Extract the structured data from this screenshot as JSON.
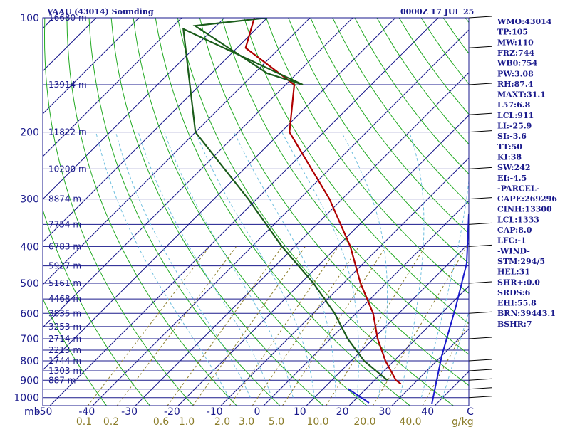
{
  "header": {
    "station": "VAAU (43014) Sounding",
    "time": "0000Z 17 JUL 25"
  },
  "chart_data": {
    "type": "line",
    "pressure_levels": [
      100,
      200,
      300,
      400,
      500,
      600,
      700,
      800,
      900,
      1000
    ],
    "pressure_tick_labels": [
      "100",
      "200",
      "300",
      "400",
      "500",
      "600",
      "700",
      "800",
      "900",
      "1000"
    ],
    "temperature_ticks": [
      -50,
      -40,
      -30,
      -20,
      -10,
      0,
      10,
      20,
      30,
      40
    ],
    "temperature_tick_labels": [
      "-50",
      "-40",
      "-30",
      "-20",
      "-10",
      "0",
      "10",
      "20",
      "30",
      "40"
    ],
    "xlabel": "C",
    "ylabel": "mb",
    "mixing_ratio_ticks": [
      0.1,
      0.2,
      0.6,
      1.0,
      2.0,
      3.0,
      5.0,
      10.0,
      20.0,
      40.0
    ],
    "mixing_ratio_tick_labels": [
      "0.1",
      "0.2",
      "0.6",
      "1.0",
      "2.0",
      "3.0",
      "5.0",
      "10.0",
      "20.0",
      "40.0"
    ],
    "mixing_ratio_unit": "g/kg",
    "height_levels": [
      {
        "pressure": 100,
        "label": "16680 m"
      },
      {
        "pressure": 150,
        "label": "13914 m"
      },
      {
        "pressure": 200,
        "label": "11822 m"
      },
      {
        "pressure": 250,
        "label": "10200 m"
      },
      {
        "pressure": 300,
        "label": "8874 m"
      },
      {
        "pressure": 350,
        "label": "7754 m"
      },
      {
        "pressure": 400,
        "label": "6783 m"
      },
      {
        "pressure": 450,
        "label": "5927 m"
      },
      {
        "pressure": 500,
        "label": "5161 m"
      },
      {
        "pressure": 550,
        "label": "4468 m"
      },
      {
        "pressure": 600,
        "label": "3835 m"
      },
      {
        "pressure": 650,
        "label": "3253 m"
      },
      {
        "pressure": 700,
        "label": "2714 m"
      },
      {
        "pressure": 750,
        "label": "2213 m"
      },
      {
        "pressure": 800,
        "label": "1744 m"
      },
      {
        "pressure": 850,
        "label": "1303 m"
      },
      {
        "pressure": 900,
        "label": "887 m"
      }
    ],
    "series": [
      {
        "name": "temperature",
        "color": "#b00000",
        "points": [
          {
            "p": 100,
            "t": -93
          },
          {
            "p": 120,
            "t": -88
          },
          {
            "p": 150,
            "t": -68
          },
          {
            "p": 200,
            "t": -58
          },
          {
            "p": 300,
            "t": -33
          },
          {
            "p": 400,
            "t": -17
          },
          {
            "p": 500,
            "t": -6
          },
          {
            "p": 600,
            "t": 4
          },
          {
            "p": 700,
            "t": 11
          },
          {
            "p": 800,
            "t": 18
          },
          {
            "p": 900,
            "t": 25
          },
          {
            "p": 920,
            "t": 27
          }
        ]
      },
      {
        "name": "dewpoint",
        "color": "#1a5c1a",
        "points": [
          {
            "p": 100,
            "t": -90
          },
          {
            "p": 105,
            "t": -105
          },
          {
            "p": 140,
            "t": -77
          },
          {
            "p": 150,
            "t": -66
          },
          {
            "p": 107,
            "t": -107
          },
          {
            "p": 200,
            "t": -80
          },
          {
            "p": 300,
            "t": -52
          },
          {
            "p": 400,
            "t": -33
          },
          {
            "p": 500,
            "t": -17
          },
          {
            "p": 600,
            "t": -5
          },
          {
            "p": 700,
            "t": 4
          },
          {
            "p": 800,
            "t": 13
          },
          {
            "p": 900,
            "t": 23
          }
        ]
      }
    ],
    "grid": true
  },
  "indices": [
    "WMO:43014",
    "TP:105",
    "MW:110",
    "FRZ:744",
    "WB0:754",
    "PW:3.08",
    "RH:87.4",
    "MAXT:31.1",
    "L57:6.8",
    "LCL:911",
    "LI:-25.9",
    "SI:-3.6",
    "TT:50",
    "KI:38",
    "SW:242",
    "EI:-4.5",
    "-PARCEL-",
    "CAPE:269296",
    "CINH:13300",
    "LCL:1333",
    "CAP:8.0",
    "LFC:-1",
    "-WIND-",
    "STM:294/5",
    "HEL:31",
    "SHR+:0.0",
    "SRDS:6",
    "EHI:55.8",
    "BRN:39443.1",
    "BSHR:7"
  ],
  "colors": {
    "isobar": "#1a1a8c",
    "isotherm": "#1a1a8c",
    "dry_adiabat": "#22aa22",
    "moist_adiabat": "#6fbfdf",
    "mixing_ratio": "#8b7d2a",
    "temperature": "#b00000",
    "dewpoint": "#1a5c1a",
    "hodograph": "#1a1acc"
  }
}
